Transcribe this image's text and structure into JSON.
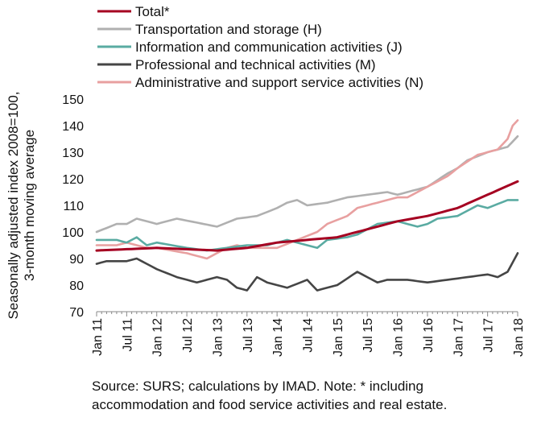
{
  "chart_data": {
    "type": "line",
    "ylabel_lines": [
      "Seasonally adjusted index 2008=100,",
      "3-month moving average"
    ],
    "ylim": [
      70,
      150
    ],
    "yticks": [
      70,
      80,
      90,
      100,
      110,
      120,
      130,
      140,
      150
    ],
    "x_start": "Jan 11",
    "x_end": "Dec 17",
    "x_tick_labels": [
      "Jan 11",
      "Jul 11",
      "Jan 12",
      "Jul 12",
      "Jan 13",
      "Jul 13",
      "Jan 14",
      "Jul 14",
      "Jan 15",
      "Jul 15",
      "Jan 16",
      "Jul 16",
      "Jan 17",
      "Jul 17",
      "Jan 18"
    ],
    "legend_position": "top-left",
    "grid": false,
    "series": [
      {
        "name": "Total*",
        "color": "#a50021",
        "anchors": [
          [
            0,
            93
          ],
          [
            6,
            93.5
          ],
          [
            12,
            94
          ],
          [
            18,
            93.5
          ],
          [
            24,
            93
          ],
          [
            30,
            94
          ],
          [
            36,
            96
          ],
          [
            42,
            97
          ],
          [
            48,
            98
          ],
          [
            54,
            101
          ],
          [
            60,
            104
          ],
          [
            66,
            106
          ],
          [
            72,
            109
          ],
          [
            78,
            114
          ],
          [
            84,
            119
          ]
        ]
      },
      {
        "name": "Transportation and storage (H)",
        "color": "#b0b0b0",
        "anchors": [
          [
            0,
            100
          ],
          [
            4,
            103
          ],
          [
            6,
            103
          ],
          [
            8,
            105
          ],
          [
            10,
            104
          ],
          [
            12,
            103
          ],
          [
            16,
            105
          ],
          [
            20,
            103.5
          ],
          [
            24,
            102
          ],
          [
            28,
            105
          ],
          [
            32,
            106
          ],
          [
            36,
            109
          ],
          [
            38,
            111
          ],
          [
            40,
            112
          ],
          [
            42,
            110
          ],
          [
            46,
            111
          ],
          [
            48,
            112
          ],
          [
            50,
            113
          ],
          [
            54,
            114
          ],
          [
            58,
            115
          ],
          [
            60,
            114
          ],
          [
            62,
            115
          ],
          [
            66,
            117
          ],
          [
            70,
            122
          ],
          [
            72,
            124
          ],
          [
            74,
            127
          ],
          [
            78,
            130
          ],
          [
            82,
            132
          ],
          [
            84,
            136
          ]
        ]
      },
      {
        "name": "Information and communication activities (J)",
        "color": "#5aaba2",
        "anchors": [
          [
            0,
            97
          ],
          [
            4,
            97
          ],
          [
            6,
            96
          ],
          [
            8,
            98
          ],
          [
            10,
            95
          ],
          [
            12,
            96
          ],
          [
            18,
            94
          ],
          [
            22,
            93
          ],
          [
            26,
            94
          ],
          [
            30,
            95
          ],
          [
            34,
            95
          ],
          [
            38,
            97
          ],
          [
            40,
            96
          ],
          [
            44,
            94
          ],
          [
            46,
            97
          ],
          [
            50,
            98
          ],
          [
            52,
            99
          ],
          [
            56,
            103
          ],
          [
            60,
            104
          ],
          [
            62,
            103
          ],
          [
            64,
            102
          ],
          [
            66,
            103
          ],
          [
            68,
            105
          ],
          [
            72,
            106
          ],
          [
            76,
            110
          ],
          [
            78,
            109
          ],
          [
            82,
            112
          ],
          [
            84,
            112
          ]
        ]
      },
      {
        "name": "Professional and technical activities (M)",
        "color": "#454545",
        "anchors": [
          [
            0,
            88
          ],
          [
            2,
            89
          ],
          [
            6,
            89
          ],
          [
            8,
            90
          ],
          [
            10,
            88
          ],
          [
            12,
            86
          ],
          [
            16,
            83
          ],
          [
            20,
            81
          ],
          [
            24,
            83
          ],
          [
            26,
            82
          ],
          [
            28,
            79
          ],
          [
            30,
            78
          ],
          [
            32,
            83
          ],
          [
            34,
            81
          ],
          [
            36,
            80
          ],
          [
            38,
            79
          ],
          [
            42,
            82
          ],
          [
            44,
            78
          ],
          [
            46,
            79
          ],
          [
            48,
            80
          ],
          [
            52,
            85
          ],
          [
            54,
            83
          ],
          [
            56,
            81
          ],
          [
            58,
            82
          ],
          [
            62,
            82
          ],
          [
            66,
            81
          ],
          [
            70,
            82
          ],
          [
            74,
            83
          ],
          [
            78,
            84
          ],
          [
            80,
            83
          ],
          [
            82,
            85
          ],
          [
            84,
            92
          ]
        ]
      },
      {
        "name": "Administrative and support service activities (N)",
        "color": "#e8a0a0",
        "anchors": [
          [
            0,
            95
          ],
          [
            4,
            95
          ],
          [
            6,
            96
          ],
          [
            10,
            94
          ],
          [
            12,
            94
          ],
          [
            18,
            92
          ],
          [
            22,
            90
          ],
          [
            24,
            92
          ],
          [
            26,
            94
          ],
          [
            28,
            95
          ],
          [
            30,
            94
          ],
          [
            36,
            94
          ],
          [
            40,
            97
          ],
          [
            44,
            100
          ],
          [
            46,
            103
          ],
          [
            50,
            106
          ],
          [
            52,
            109
          ],
          [
            54,
            110
          ],
          [
            56,
            111
          ],
          [
            60,
            113
          ],
          [
            62,
            113
          ],
          [
            66,
            117
          ],
          [
            70,
            121
          ],
          [
            72,
            124
          ],
          [
            76,
            129
          ],
          [
            80,
            131
          ],
          [
            82,
            135
          ],
          [
            83,
            140
          ],
          [
            84,
            142
          ]
        ]
      }
    ]
  },
  "source_lines": [
    "Source:  SURS; calculations by IMAD. Note: * including",
    "accommodation and food service activities and real estate."
  ]
}
